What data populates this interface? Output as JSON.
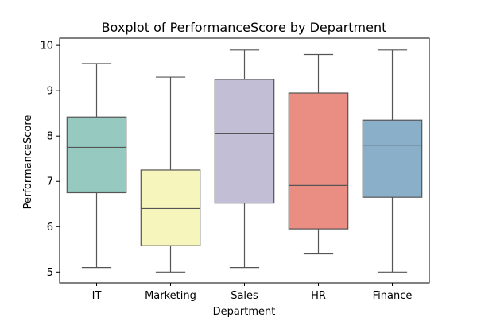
{
  "chart_data": {
    "type": "boxplot",
    "title": "Boxplot of PerformanceScore by Department",
    "xlabel": "Department",
    "ylabel": "PerformanceScore",
    "ylim": [
      4.76,
      10.16
    ],
    "yticks": [
      5,
      6,
      7,
      8,
      9,
      10
    ],
    "ytick_labels": [
      "5",
      "6",
      "7",
      "8",
      "9",
      "10"
    ],
    "grid": false,
    "legend": "none",
    "categories": [
      "IT",
      "Marketing",
      "Sales",
      "HR",
      "Finance"
    ],
    "series": [
      {
        "category": "IT",
        "min": 5.1,
        "q1": 6.75,
        "median": 7.75,
        "q3": 8.42,
        "max": 9.6,
        "color": "#96cac1"
      },
      {
        "category": "Marketing",
        "min": 5.0,
        "q1": 5.58,
        "median": 6.4,
        "q3": 7.25,
        "max": 9.3,
        "color": "#f6f6bc"
      },
      {
        "category": "Sales",
        "min": 5.1,
        "q1": 6.52,
        "median": 8.05,
        "q3": 9.25,
        "max": 9.9,
        "color": "#c1bed6"
      },
      {
        "category": "HR",
        "min": 5.4,
        "q1": 5.95,
        "median": 6.91,
        "q3": 8.95,
        "max": 9.8,
        "color": "#ea8e83"
      },
      {
        "category": "Finance",
        "min": 5.0,
        "q1": 6.65,
        "median": 7.8,
        "q3": 8.35,
        "max": 9.9,
        "color": "#8aafc9"
      }
    ]
  }
}
